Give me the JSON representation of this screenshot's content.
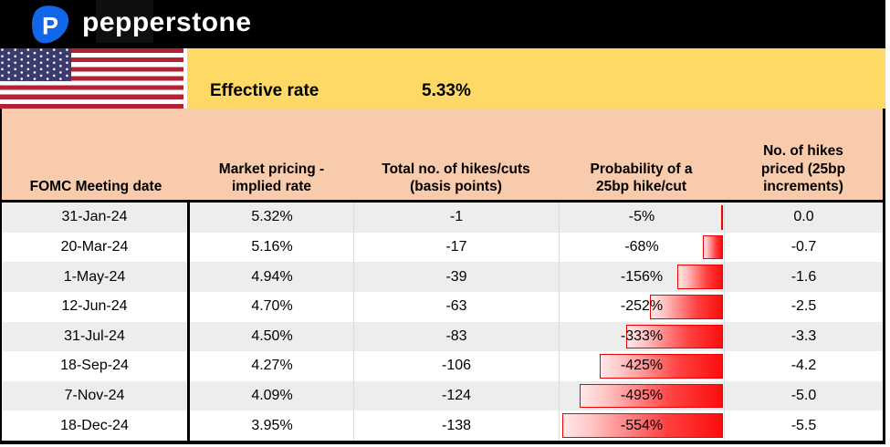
{
  "brand": {
    "name": "pepperstone",
    "logo_letter": "P",
    "logo_color": "#1266E8",
    "bar_color": "#000000"
  },
  "effective_rate": {
    "label": "Effective rate",
    "value": "5.33%"
  },
  "colors": {
    "yellow_band": "#FFD966",
    "header_band": "#F8CBAD",
    "row_alt": "#EDEDED",
    "row_white": "#FFFFFF",
    "bar_red": "#FF0000",
    "flag_red": "#B22234",
    "flag_blue": "#3C3B6E"
  },
  "chart_data": {
    "type": "table",
    "columns": [
      "FOMC Meeting date",
      "Market pricing -\nimplied rate",
      "Total no. of hikes/cuts\n(basis points)",
      "Probability of a\n25bp hike/cut",
      "No. of hikes\npriced (25bp\nincrements)"
    ],
    "rows": [
      {
        "date": "31-Jan-24",
        "implied_rate": "5.32%",
        "total_bp": "-1",
        "probability_label": "-5%",
        "probability_pct": -5,
        "hikes_priced": "0.0"
      },
      {
        "date": "20-Mar-24",
        "implied_rate": "5.16%",
        "total_bp": "-17",
        "probability_label": "-68%",
        "probability_pct": -68,
        "hikes_priced": "-0.7"
      },
      {
        "date": "1-May-24",
        "implied_rate": "4.94%",
        "total_bp": "-39",
        "probability_label": "-156%",
        "probability_pct": -156,
        "hikes_priced": "-1.6"
      },
      {
        "date": "12-Jun-24",
        "implied_rate": "4.70%",
        "total_bp": "-63",
        "probability_label": "-252%",
        "probability_pct": -252,
        "hikes_priced": "-2.5"
      },
      {
        "date": "31-Jul-24",
        "implied_rate": "4.50%",
        "total_bp": "-83",
        "probability_label": "-333%",
        "probability_pct": -333,
        "hikes_priced": "-3.3"
      },
      {
        "date": "18-Sep-24",
        "implied_rate": "4.27%",
        "total_bp": "-106",
        "probability_label": "-425%",
        "probability_pct": -425,
        "hikes_priced": "-4.2"
      },
      {
        "date": "7-Nov-24",
        "implied_rate": "4.09%",
        "total_bp": "-124",
        "probability_label": "-495%",
        "probability_pct": -495,
        "hikes_priced": "-5.0"
      },
      {
        "date": "18-Dec-24",
        "implied_rate": "3.95%",
        "total_bp": "-138",
        "probability_label": "-554%",
        "probability_pct": -554,
        "hikes_priced": "-5.5"
      }
    ],
    "embedded_bars": {
      "column": "Probability of a 25bp hike/cut",
      "direction": "right-to-left",
      "bar_color": "#FF0000",
      "scale_abs_max_pct": 560
    }
  }
}
